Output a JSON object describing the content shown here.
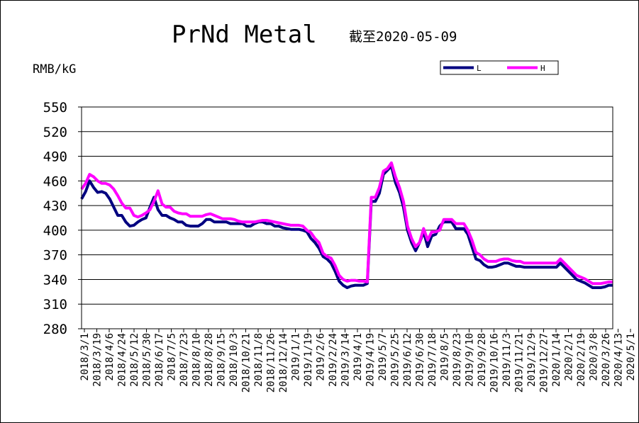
{
  "chart_data": {
    "type": "line",
    "title": "PrNd Metal",
    "subtitle": "截至2020-05-09",
    "ylabel": "RMB/kG",
    "ylim": [
      280,
      550
    ],
    "yticks": [
      280,
      310,
      340,
      370,
      400,
      430,
      460,
      490,
      520,
      550
    ],
    "grid": true,
    "legend_position": "top-right",
    "x_tick_labels": [
      "2018/3/1",
      "2018/3/19",
      "2018/4/6",
      "2018/4/24",
      "2018/5/12",
      "2018/5/30",
      "2018/6/17",
      "2018/7/5",
      "2018/7/23",
      "2018/8/10",
      "2018/8/28",
      "2018/9/15",
      "2018/10/3",
      "2018/10/21",
      "2018/11/8",
      "2018/11/26",
      "2018/12/14",
      "2019/1/1",
      "2019/1/19",
      "2019/2/6",
      "2019/2/24",
      "2019/3/14",
      "2019/4/1",
      "2019/4/19",
      "2019/5/7",
      "2019/5/25",
      "2019/6/12",
      "2019/6/30",
      "2019/7/18",
      "2019/8/5",
      "2019/8/23",
      "2019/9/10",
      "2019/9/28",
      "2019/10/16",
      "2019/11/3",
      "2019/11/21",
      "2019/12/9",
      "2019/12/27",
      "2020/1/14",
      "2020/2/1",
      "2020/2/19",
      "2020/3/8",
      "2020/3/26",
      "2020/4/13",
      "2020/5/1"
    ],
    "series": [
      {
        "name": "L",
        "color": "#000080",
        "values": [
          438,
          447,
          460,
          452,
          446,
          447,
          445,
          438,
          428,
          418,
          418,
          410,
          405,
          406,
          410,
          413,
          415,
          428,
          440,
          425,
          418,
          418,
          415,
          413,
          410,
          410,
          406,
          405,
          405,
          405,
          408,
          413,
          413,
          410,
          410,
          410,
          410,
          408,
          408,
          408,
          408,
          405,
          405,
          408,
          410,
          410,
          408,
          408,
          405,
          405,
          403,
          402,
          401,
          401,
          401,
          400,
          398,
          390,
          385,
          378,
          368,
          365,
          360,
          350,
          338,
          333,
          330,
          332,
          333,
          333,
          333,
          335,
          435,
          435,
          445,
          468,
          473,
          478,
          458,
          446,
          428,
          400,
          385,
          375,
          385,
          398,
          380,
          393,
          395,
          405,
          410,
          410,
          410,
          402,
          402,
          402,
          395,
          380,
          365,
          363,
          358,
          355,
          355,
          356,
          358,
          360,
          360,
          358,
          356,
          356,
          355,
          355,
          355,
          355,
          355,
          355,
          355,
          355,
          355,
          360,
          355,
          350,
          345,
          340,
          338,
          336,
          333,
          330,
          330,
          330,
          331,
          333,
          333
        ]
      },
      {
        "name": "H",
        "color": "#ff00ff",
        "values": [
          450,
          457,
          468,
          465,
          460,
          457,
          457,
          455,
          450,
          442,
          433,
          427,
          427,
          418,
          416,
          418,
          421,
          425,
          435,
          448,
          432,
          428,
          428,
          423,
          421,
          420,
          420,
          417,
          417,
          417,
          417,
          419,
          420,
          418,
          416,
          414,
          414,
          414,
          413,
          411,
          410,
          410,
          410,
          410,
          411,
          412,
          412,
          411,
          410,
          409,
          408,
          407,
          406,
          406,
          406,
          405,
          400,
          397,
          390,
          385,
          372,
          368,
          366,
          357,
          345,
          340,
          338,
          339,
          339,
          338,
          338,
          337,
          440,
          440,
          452,
          472,
          475,
          482,
          465,
          452,
          435,
          405,
          390,
          380,
          385,
          402,
          388,
          398,
          398,
          400,
          413,
          413,
          413,
          408,
          408,
          408,
          400,
          388,
          373,
          370,
          365,
          362,
          362,
          362,
          364,
          365,
          365,
          363,
          362,
          362,
          360,
          360,
          360,
          360,
          360,
          360,
          360,
          360,
          360,
          365,
          360,
          355,
          350,
          345,
          343,
          341,
          338,
          335,
          335,
          335,
          336,
          337,
          337
        ]
      }
    ]
  }
}
